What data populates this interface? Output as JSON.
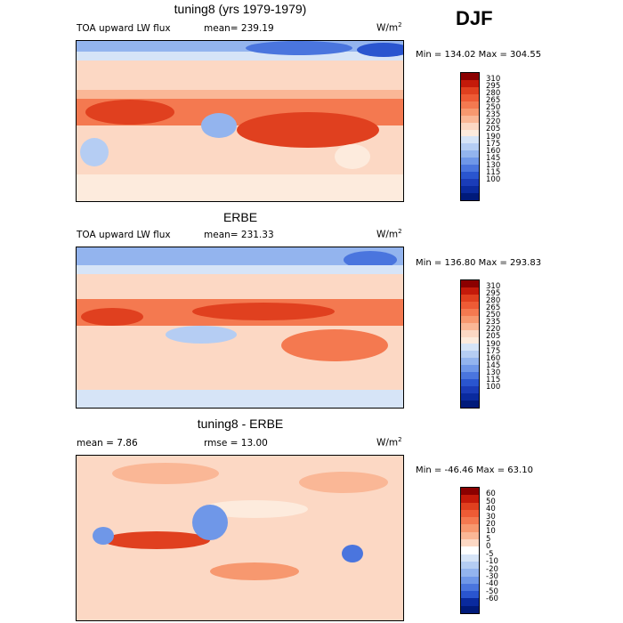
{
  "season": "DJF",
  "panels": [
    {
      "title": "tuning8 (yrs 1979-1979)",
      "field": "TOA upward LW flux",
      "stat_left": "mean= 239.19",
      "stat_right": "",
      "units": "W/m",
      "units_sup": "2",
      "minmax": "Min = 134.02  Max = 304.55",
      "colorbar_labels": [
        "310",
        "295",
        "280",
        "265",
        "250",
        "235",
        "220",
        "205",
        "190",
        "175",
        "160",
        "145",
        "130",
        "115",
        "100"
      ],
      "colors": [
        "#8b0000",
        "#c41a0a",
        "#e0401f",
        "#ee5b35",
        "#f47950",
        "#f7986f",
        "#fab796",
        "#fcd8c4",
        "#fdebdd",
        "#d6e4f7",
        "#b5cdf3",
        "#93b4ee",
        "#6f97e8",
        "#4a75de",
        "#2a55cf",
        "#1a3cb8",
        "#0a2a9e",
        "#001a7a"
      ]
    },
    {
      "title": "ERBE",
      "field": "TOA upward LW flux",
      "stat_left": "mean= 231.33",
      "stat_right": "",
      "units": "W/m",
      "units_sup": "2",
      "minmax": "Min = 136.80  Max = 293.83",
      "colorbar_labels": [
        "310",
        "295",
        "280",
        "265",
        "250",
        "235",
        "220",
        "205",
        "190",
        "175",
        "160",
        "145",
        "130",
        "115",
        "100"
      ],
      "colors": [
        "#8b0000",
        "#c41a0a",
        "#e0401f",
        "#ee5b35",
        "#f47950",
        "#f7986f",
        "#fab796",
        "#fcd8c4",
        "#fdebdd",
        "#d6e4f7",
        "#b5cdf3",
        "#93b4ee",
        "#6f97e8",
        "#4a75de",
        "#2a55cf",
        "#1a3cb8",
        "#0a2a9e",
        "#001a7a"
      ]
    },
    {
      "title": "tuning8 - ERBE",
      "field": "",
      "stat_left": "mean =    7.86",
      "stat_right": "rmse =   13.00",
      "units": "W/m",
      "units_sup": "2",
      "minmax": "Min = -46.46  Max =  63.10",
      "colorbar_labels": [
        "60",
        "50",
        "40",
        "30",
        "20",
        "10",
        "5",
        "0",
        "-5",
        "-10",
        "-20",
        "-30",
        "-40",
        "-50",
        "-60"
      ],
      "colors": [
        "#8b0000",
        "#c41a0a",
        "#e0401f",
        "#ee5b35",
        "#f47950",
        "#f7986f",
        "#fab796",
        "#fcd8c4",
        "#ffffff",
        "#d6e4f7",
        "#b5cdf3",
        "#93b4ee",
        "#6f97e8",
        "#4a75de",
        "#2a55cf",
        "#0a2a9e",
        "#001a7a"
      ]
    }
  ],
  "chart_data": [
    {
      "type": "heatmap",
      "title": "tuning8 (yrs 1979-1979)",
      "variable": "TOA upward LW flux",
      "units": "W/m2",
      "mean": 239.19,
      "min": 134.02,
      "max": 304.55,
      "contour_levels": [
        100,
        115,
        130,
        145,
        160,
        175,
        190,
        205,
        220,
        235,
        250,
        265,
        280,
        295,
        310
      ]
    },
    {
      "type": "heatmap",
      "title": "ERBE",
      "variable": "TOA upward LW flux",
      "units": "W/m2",
      "mean": 231.33,
      "min": 136.8,
      "max": 293.83,
      "contour_levels": [
        100,
        115,
        130,
        145,
        160,
        175,
        190,
        205,
        220,
        235,
        250,
        265,
        280,
        295,
        310
      ]
    },
    {
      "type": "heatmap",
      "title": "tuning8 - ERBE",
      "units": "W/m2",
      "mean": 7.86,
      "rmse": 13.0,
      "min": -46.46,
      "max": 63.1,
      "contour_levels": [
        -60,
        -50,
        -40,
        -30,
        -20,
        -10,
        -5,
        0,
        5,
        10,
        20,
        30,
        40,
        50,
        60
      ]
    }
  ]
}
